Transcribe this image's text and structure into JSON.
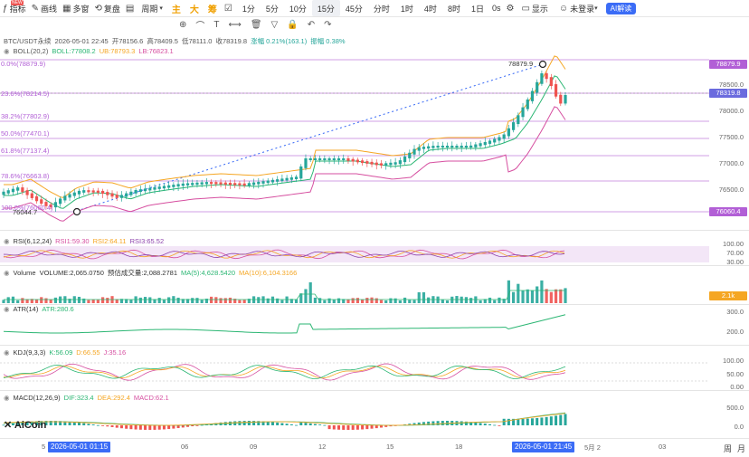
{
  "toolbar": {
    "new_badge": "NEW",
    "indicators": "指标",
    "layout": "画线",
    "multi_window": "多窗",
    "replay": "复盘",
    "periods_label": "周期",
    "char_main": "主",
    "char_large": "大",
    "char_chips": "筹",
    "intervals": [
      "1分",
      "5分",
      "10分",
      "15分",
      "45分",
      "分时",
      "1时",
      "4时",
      "8时",
      "1日"
    ],
    "selected_interval": "15分",
    "countdown": "0s",
    "display": "显示",
    "not_logged_in": "未登录",
    "ai_button": "AI解读"
  },
  "info": {
    "symbol": "BTC/USDT永续",
    "datetime": "2026-05-01 22:45",
    "open": "开78156.6",
    "high": "高78409.5",
    "low": "低78111.0",
    "close": "收78319.8",
    "change": "涨幅 0.21%(163.1)",
    "amplitude": "振幅 0.38%"
  },
  "boll": {
    "label": "BOLL(20,2)",
    "mb": "BOLL:77808.2",
    "ub": "UB:78793.3",
    "lb": "LB:76823.1"
  },
  "fib_labels": [
    "0.0%(78879.9)",
    "23.6%(78214.5)",
    "38.2%(77802.9)",
    "50.0%(77470.1)",
    "61.8%(77137.4)",
    "78.6%(76663.8)",
    "100.0%(76060.4)"
  ],
  "price_marks": {
    "high_mark": "78879.9",
    "low_mark": "76044.7"
  },
  "price_tags": {
    "fib0": "78879.9",
    "current": "78319.8",
    "fib100": "76060.4"
  },
  "price_axis": [
    "78500.0",
    "78000.0",
    "77500.0",
    "77000.0",
    "76500.0"
  ],
  "rsi": {
    "label": "RSI(6,12,24)",
    "v1": "RSI1:59.30",
    "v2": "RSI2:64.11",
    "v3": "RSI3:65.52",
    "axis": [
      "100.00",
      "70.00",
      "30.00"
    ]
  },
  "volume": {
    "label": "Volume",
    "vol": "VOLUME:2,065.0750",
    "forecast": "预估成交量:2,088.2781",
    "ma5": "MA(5):4,628.5420",
    "ma10": "MA(10):6,104.3166",
    "tag": "2.1k"
  },
  "atr": {
    "label": "ATR(14)",
    "value": "ATR:280.6",
    "axis": [
      "300.0",
      "200.0"
    ]
  },
  "kdj": {
    "label": "KDJ(9,3,3)",
    "k": "K:56.09",
    "d": "D:66.55",
    "j": "J:35.16",
    "axis": [
      "100.00",
      "50.00",
      "0.00"
    ]
  },
  "macd": {
    "label": "MACD(12,26,9)",
    "dif": "DIF:323.4",
    "dea": "DEA:292.4",
    "macd": "MACD:62.1",
    "axis": [
      "500.0",
      "0.0"
    ]
  },
  "watermark": "AiCoin",
  "time_axis": {
    "left_cut": "5",
    "start_highlight": "2026-05-01 01:15",
    "ticks": [
      "06",
      "09",
      "12",
      "15",
      "18"
    ],
    "end_highlight": "2026-05-01 21:45",
    "after": [
      "5月 2",
      "03"
    ],
    "unit_week": "周",
    "unit_month": "月"
  },
  "colors": {
    "up": "#26a69a",
    "down": "#ef5350",
    "fib": "#b25fd6",
    "boll_mid": "#2bb673",
    "boll_up": "#f5a623",
    "boll_low": "#d64fa0",
    "accent": "#3b6cf6"
  }
}
